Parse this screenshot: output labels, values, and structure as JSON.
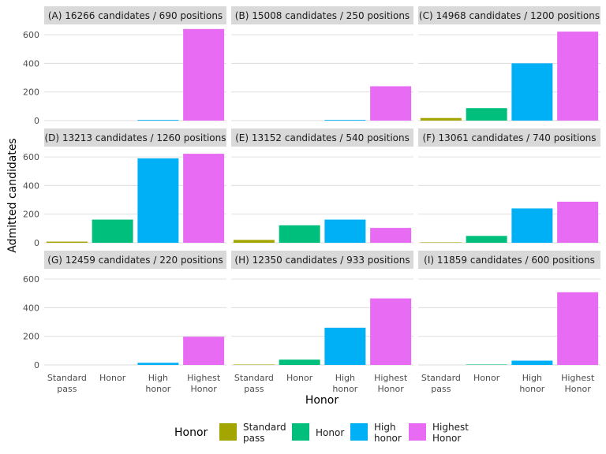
{
  "chart_data": {
    "type": "bar",
    "facet_layout": "3x3",
    "categories": [
      "Standard\npass",
      "Honor",
      "High\nhonor",
      "Highest\nHonor"
    ],
    "xlabel": "Honor",
    "ylabel": "Admitted candidates",
    "ylim": [
      0,
      650
    ],
    "yticks": [
      0,
      200,
      400,
      600
    ],
    "grid": true,
    "legend": {
      "title": "Honor",
      "position": "bottom",
      "entries": [
        "Standard\npass",
        "Honor",
        "High\nhonor",
        "Highest\nHonor"
      ]
    },
    "colors": [
      "#a3a500",
      "#00bf7d",
      "#00b0f6",
      "#e76bf3"
    ],
    "panels": [
      {
        "title": "(A) 16266 candidates / 690 positions",
        "values": [
          0,
          0,
          5,
          640
        ]
      },
      {
        "title": "(B) 15008 candidates / 250 positions",
        "values": [
          0,
          0,
          5,
          240
        ]
      },
      {
        "title": "(C) 14968 candidates / 1200 positions",
        "values": [
          18,
          87,
          400,
          622
        ]
      },
      {
        "title": "(D) 13213 candidates / 1260 positions",
        "values": [
          8,
          162,
          590,
          622
        ]
      },
      {
        "title": "(E) 13152 candidates / 540 positions",
        "values": [
          20,
          122,
          162,
          104
        ]
      },
      {
        "title": "(F) 13061 candidates / 740 positions",
        "values": [
          3,
          48,
          240,
          287
        ]
      },
      {
        "title": "(G) 12459 candidates / 220 positions",
        "values": [
          0,
          0,
          15,
          197
        ]
      },
      {
        "title": "(H) 12350 candidates / 933 positions",
        "values": [
          3,
          37,
          260,
          465
        ]
      },
      {
        "title": "(I) 11859 candidates / 600 positions",
        "values": [
          0,
          3,
          30,
          508
        ]
      }
    ]
  }
}
